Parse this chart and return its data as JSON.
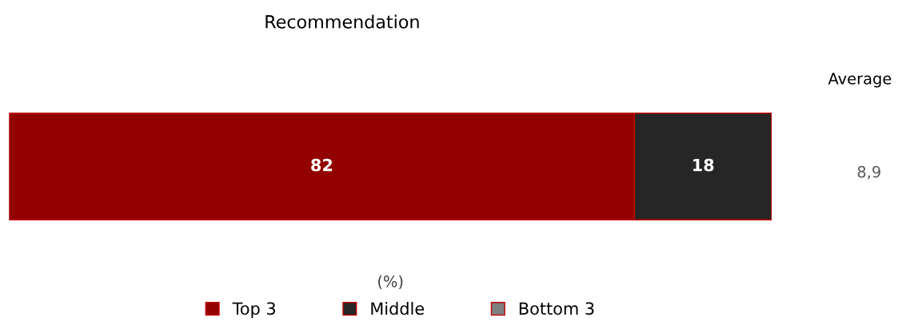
{
  "chart_data": {
    "type": "bar",
    "orientation": "horizontal",
    "stacked": true,
    "title": "Recommendation",
    "xlabel": "(%)",
    "categories": [
      null
    ],
    "series": [
      {
        "name": "Top 3",
        "color": "#920000",
        "values": [
          82
        ],
        "value_labels": [
          "82"
        ]
      },
      {
        "name": "Middle",
        "color": "#262626",
        "values": [
          18
        ],
        "value_labels": [
          "18"
        ]
      },
      {
        "name": "Bottom 3",
        "color": "#7f7f7f",
        "values": [
          0
        ],
        "value_labels": [
          null
        ]
      }
    ],
    "xlim": [
      0,
      100
    ],
    "tick_labels": false,
    "grid": false,
    "legend": "bottom",
    "annotations": [
      "Average",
      "8,9"
    ]
  }
}
